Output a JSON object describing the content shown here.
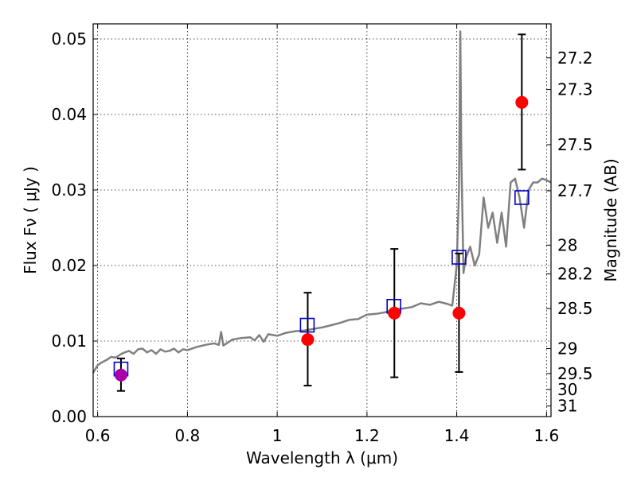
{
  "chart_data": {
    "type": "scatter",
    "title": "",
    "xlabel": "Wavelength  λ (μm)",
    "ylabel": "Flux  Fν  ( μJy )",
    "ylabel_right": "Magnitude (AB)",
    "xlim": [
      0.59,
      1.61
    ],
    "ylim": [
      0.0,
      0.052
    ],
    "grid": true,
    "x_ticks": [
      0.6,
      0.8,
      1.0,
      1.2,
      1.4,
      1.6
    ],
    "x_tick_labels": [
      "0.6",
      "0.8",
      "1",
      "1.2",
      "1.4",
      "1.6"
    ],
    "y_ticks": [
      0.0,
      0.01,
      0.02,
      0.03,
      0.04,
      0.05
    ],
    "y_tick_labels": [
      "0.00",
      "0.01",
      "0.02",
      "0.03",
      "0.04",
      "0.05"
    ],
    "right_ticks": [
      {
        "label": "27.2",
        "flux": 0.0475
      },
      {
        "label": "27.3",
        "flux": 0.0433
      },
      {
        "label": "27.5",
        "flux": 0.036
      },
      {
        "label": "27.7",
        "flux": 0.0299
      },
      {
        "label": "28",
        "flux": 0.0227
      },
      {
        "label": "28.2",
        "flux": 0.0189
      },
      {
        "label": "28.5",
        "flux": 0.0143
      },
      {
        "label": "29",
        "flux": 0.009
      },
      {
        "label": "29.5",
        "flux": 0.0057
      },
      {
        "label": "30",
        "flux": 0.0036
      },
      {
        "label": "31",
        "flux": 0.0014
      }
    ],
    "model_spectrum": {
      "color": "#808080",
      "x": [
        0.59,
        0.6,
        0.61,
        0.62,
        0.63,
        0.64,
        0.65,
        0.66,
        0.67,
        0.68,
        0.69,
        0.7,
        0.71,
        0.72,
        0.73,
        0.74,
        0.75,
        0.76,
        0.77,
        0.78,
        0.79,
        0.8,
        0.82,
        0.84,
        0.86,
        0.87,
        0.875,
        0.88,
        0.9,
        0.92,
        0.94,
        0.95,
        0.96,
        0.97,
        0.98,
        1.0,
        1.02,
        1.04,
        1.06,
        1.08,
        1.1,
        1.12,
        1.14,
        1.16,
        1.18,
        1.2,
        1.22,
        1.24,
        1.26,
        1.28,
        1.3,
        1.32,
        1.34,
        1.36,
        1.38,
        1.39,
        1.4,
        1.405,
        1.408,
        1.41,
        1.415,
        1.42,
        1.43,
        1.44,
        1.45,
        1.46,
        1.47,
        1.48,
        1.49,
        1.5,
        1.51,
        1.52,
        1.53,
        1.54,
        1.55,
        1.56,
        1.57,
        1.58,
        1.59,
        1.6,
        1.61
      ],
      "y": [
        0.0058,
        0.0068,
        0.0072,
        0.0075,
        0.0079,
        0.0078,
        0.0082,
        0.0085,
        0.0087,
        0.0083,
        0.0089,
        0.009,
        0.0085,
        0.0088,
        0.0083,
        0.0089,
        0.0086,
        0.0087,
        0.009,
        0.0085,
        0.0089,
        0.0088,
        0.0092,
        0.0095,
        0.0097,
        0.0095,
        0.0112,
        0.0094,
        0.0102,
        0.0104,
        0.0105,
        0.0101,
        0.0108,
        0.0099,
        0.0109,
        0.0107,
        0.0111,
        0.0113,
        0.0114,
        0.0116,
        0.0118,
        0.0121,
        0.0124,
        0.0128,
        0.0129,
        0.0135,
        0.0136,
        0.0138,
        0.0142,
        0.0143,
        0.0145,
        0.015,
        0.0148,
        0.0152,
        0.0149,
        0.0147,
        0.02,
        0.03,
        0.051,
        0.035,
        0.019,
        0.021,
        0.0225,
        0.02,
        0.0215,
        0.029,
        0.025,
        0.027,
        0.023,
        0.027,
        0.0225,
        0.031,
        0.0315,
        0.029,
        0.025,
        0.03,
        0.031,
        0.031,
        0.0315,
        0.0313,
        0.031
      ]
    },
    "model_photometry": {
      "marker": "square",
      "color": "#0000cc",
      "points": [
        {
          "x": 0.652,
          "y": 0.0063
        },
        {
          "x": 1.067,
          "y": 0.0121
        },
        {
          "x": 1.26,
          "y": 0.0146
        },
        {
          "x": 1.405,
          "y": 0.0211
        },
        {
          "x": 1.545,
          "y": 0.029
        }
      ]
    },
    "observed": {
      "marker": "circle",
      "points": [
        {
          "x": 0.652,
          "y": 0.0055,
          "err_low": 0.0034,
          "err_high": 0.0077,
          "color": "#aa00aa"
        },
        {
          "x": 1.068,
          "y": 0.0102,
          "err_low": 0.0041,
          "err_high": 0.0164,
          "color": "#ff0000"
        },
        {
          "x": 1.261,
          "y": 0.0137,
          "err_low": 0.0052,
          "err_high": 0.0222,
          "color": "#ff0000"
        },
        {
          "x": 1.405,
          "y": 0.0137,
          "err_low": 0.0059,
          "err_high": 0.0216,
          "color": "#ff0000"
        },
        {
          "x": 1.545,
          "y": 0.0416,
          "err_low": 0.0327,
          "err_high": 0.0506,
          "color": "#ff0000"
        }
      ]
    }
  }
}
